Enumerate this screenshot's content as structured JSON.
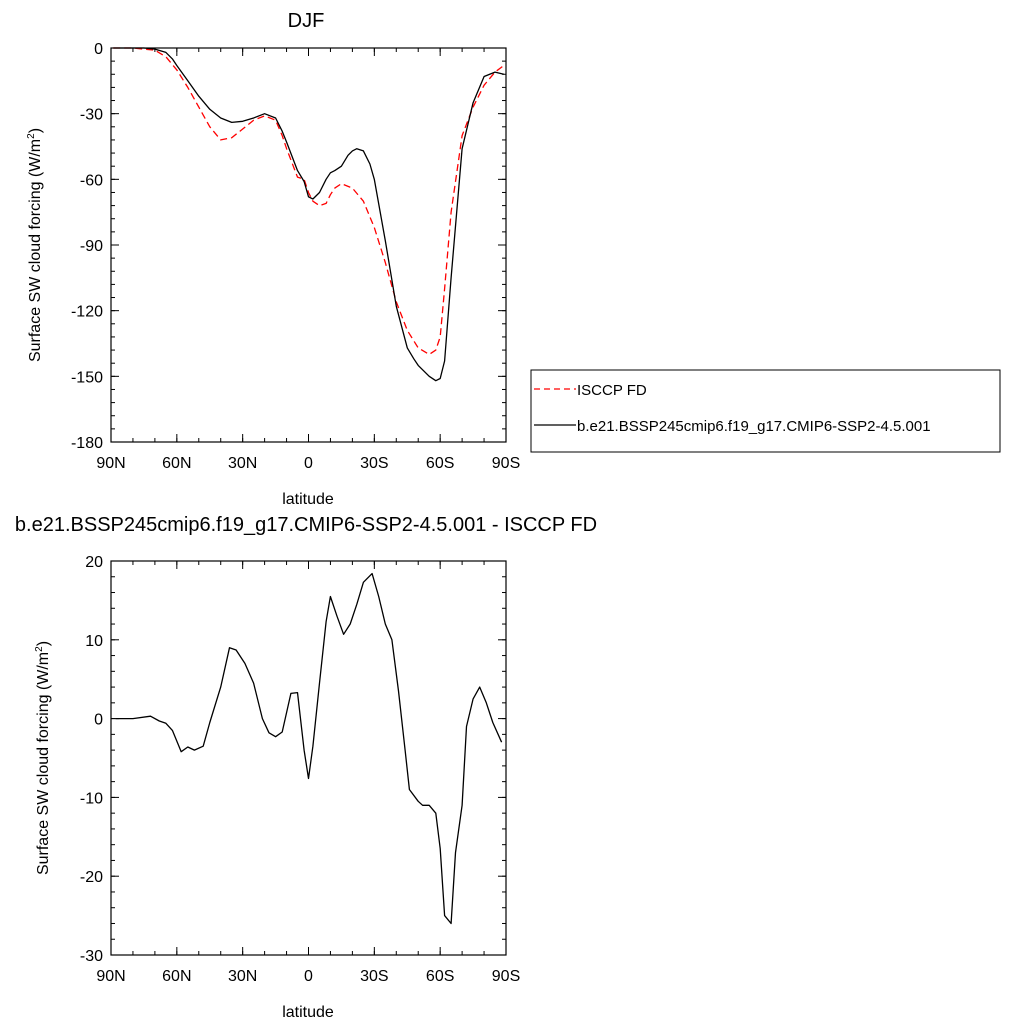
{
  "chart_data": [
    {
      "type": "line",
      "title": "DJF",
      "xlabel": "latitude",
      "ylabel_main": "Surface SW cloud forcing (W/m",
      "ylabel_sup": "2",
      "ylabel_close": ")",
      "xlim": [
        90,
        -90
      ],
      "ylim": [
        -180,
        0
      ],
      "x_ticks": [
        90,
        60,
        30,
        0,
        -30,
        -60,
        -90
      ],
      "x_tick_labels": [
        "90N",
        "60N",
        "30N",
        "0",
        "30S",
        "60S",
        "90S"
      ],
      "y_ticks": [
        0,
        -30,
        -60,
        -90,
        -120,
        -150,
        -180
      ],
      "y_tick_labels": [
        "0",
        "-30",
        "-60",
        "-90",
        "-120",
        "-150",
        "-180"
      ],
      "legend": "right",
      "series": [
        {
          "name": "ISCCP FD",
          "color": "#ff0000",
          "dash": "dashed",
          "x": [
            89,
            85,
            80,
            75,
            70,
            65,
            60,
            55,
            50,
            45,
            40,
            35,
            30,
            25,
            20,
            15,
            12,
            10,
            5,
            2,
            0,
            -2,
            -5,
            -8,
            -10,
            -12,
            -15,
            -20,
            -25,
            -30,
            -35,
            -40,
            -45,
            -50,
            -55,
            -58,
            -60,
            -62,
            -65,
            -70,
            -75,
            -80,
            -85,
            -89
          ],
          "y": [
            0,
            0,
            0,
            -0.5,
            -1,
            -4,
            -10,
            -18,
            -27,
            -36,
            -42,
            -41,
            -37,
            -33,
            -31,
            -33,
            -40,
            -46,
            -59,
            -60,
            -66,
            -70,
            -72,
            -71,
            -67,
            -64,
            -62,
            -64,
            -70,
            -82,
            -98,
            -116,
            -129,
            -137,
            -140,
            -138,
            -132,
            -110,
            -75,
            -40,
            -27,
            -17,
            -11,
            -8
          ]
        },
        {
          "name": "b.e21.BSSP245cmip6.f19_g17.CMIP6-SSP2-4.5.001",
          "color": "#000000",
          "dash": "solid",
          "x": [
            89,
            85,
            80,
            75,
            70,
            65,
            62,
            60,
            55,
            50,
            45,
            40,
            35,
            30,
            25,
            20,
            15,
            12,
            10,
            5,
            2,
            0,
            -2,
            -5,
            -8,
            -10,
            -12,
            -15,
            -18,
            -20,
            -22,
            -25,
            -28,
            -30,
            -35,
            -40,
            -45,
            -48,
            -50,
            -55,
            -58,
            -60,
            -62,
            -65,
            -70,
            -75,
            -80,
            -85,
            -89
          ],
          "y": [
            0,
            0,
            0,
            0,
            -0.5,
            -2,
            -5,
            -8,
            -15,
            -22,
            -28,
            -32,
            -34,
            -33.5,
            -32,
            -30,
            -32,
            -38,
            -43,
            -56,
            -61,
            -68,
            -69,
            -66,
            -60,
            -57,
            -56,
            -54,
            -49,
            -47,
            -46,
            -47,
            -53,
            -60,
            -88,
            -118,
            -137,
            -142,
            -145,
            -150,
            -152,
            -151,
            -143,
            -105,
            -46,
            -25,
            -13,
            -11,
            -12
          ]
        }
      ]
    },
    {
      "type": "line",
      "title": "b.e21.BSSP245cmip6.f19_g17.CMIP6-SSP2-4.5.001 - ISCCP FD",
      "xlabel": "latitude",
      "ylabel_main": "Surface SW cloud forcing (W/m",
      "ylabel_sup": "2",
      "ylabel_close": ")",
      "xlim": [
        90,
        -90
      ],
      "ylim": [
        -30,
        20
      ],
      "x_ticks": [
        90,
        60,
        30,
        0,
        -30,
        -60,
        -90
      ],
      "x_tick_labels": [
        "90N",
        "60N",
        "30N",
        "0",
        "30S",
        "60S",
        "90S"
      ],
      "y_ticks": [
        20,
        10,
        0,
        -10,
        -20,
        -30
      ],
      "y_tick_labels": [
        "20",
        "10",
        "0",
        "-10",
        "-20",
        "-30"
      ],
      "series": [
        {
          "color": "#000000",
          "dash": "solid",
          "x": [
            88,
            80,
            72,
            68,
            65,
            62,
            58,
            55,
            52,
            48,
            45,
            40,
            36,
            33,
            29,
            25,
            21,
            18,
            15,
            12,
            8,
            5,
            2,
            0,
            -2,
            -5,
            -8,
            -10,
            -13,
            -16,
            -19,
            -22,
            -25,
            -29,
            -32,
            -35,
            -38,
            -41,
            -44,
            -46,
            -50,
            -52,
            -55,
            -58,
            -60,
            -62,
            -65,
            -67,
            -70,
            -72,
            -75,
            -78,
            -81,
            -84,
            -88
          ],
          "y": [
            0,
            0,
            0.3,
            -0.3,
            -0.6,
            -1.5,
            -4.2,
            -3.6,
            -4,
            -3.5,
            -0.5,
            4,
            9,
            8.7,
            7,
            4.5,
            0,
            -1.8,
            -2.3,
            -1.7,
            3.2,
            3.3,
            -4,
            -7.6,
            -3.5,
            4.5,
            12.3,
            15.5,
            13,
            10.7,
            12,
            14.5,
            17.3,
            18.4,
            15.5,
            12,
            10,
            3.5,
            -4,
            -9,
            -10.5,
            -11,
            -11,
            -12,
            -16.5,
            -25,
            -26,
            -17,
            -11,
            -1,
            2.5,
            4,
            2,
            -0.5,
            -3
          ]
        }
      ]
    }
  ]
}
